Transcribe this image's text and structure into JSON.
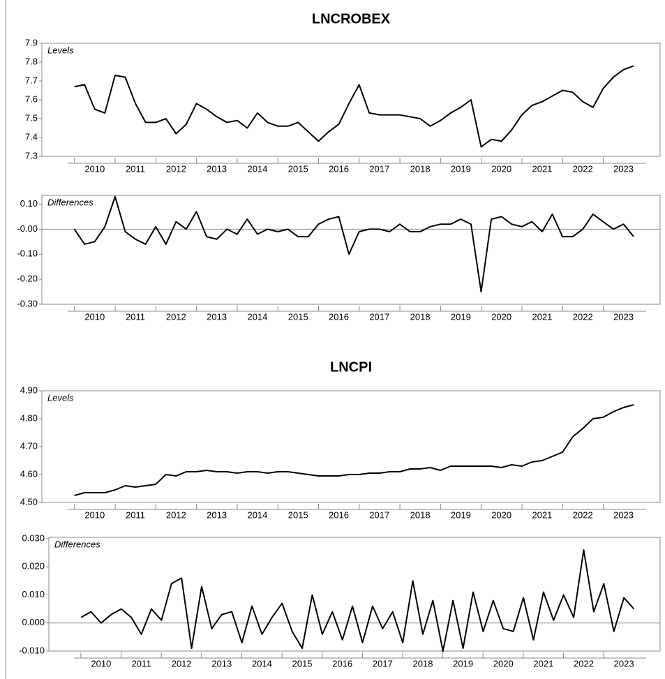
{
  "chart_data": [
    {
      "type": "line",
      "title": "LNCROBEX",
      "panel_label": "Levels",
      "x": [
        2010.0,
        2010.25,
        2010.5,
        2010.75,
        2011.0,
        2011.25,
        2011.5,
        2011.75,
        2012.0,
        2012.25,
        2012.5,
        2012.75,
        2013.0,
        2013.25,
        2013.5,
        2013.75,
        2014.0,
        2014.25,
        2014.5,
        2014.75,
        2015.0,
        2015.25,
        2015.5,
        2015.75,
        2016.0,
        2016.25,
        2016.5,
        2016.75,
        2017.0,
        2017.25,
        2017.5,
        2017.75,
        2018.0,
        2018.25,
        2018.5,
        2018.75,
        2019.0,
        2019.25,
        2019.5,
        2019.75,
        2020.0,
        2020.25,
        2020.5,
        2020.75,
        2021.0,
        2021.25,
        2021.5,
        2021.75,
        2022.0,
        2022.25,
        2022.5,
        2022.75,
        2023.0,
        2023.25,
        2023.5,
        2023.75
      ],
      "series": [
        {
          "color": "#000000",
          "values": [
            7.67,
            7.68,
            7.55,
            7.53,
            7.73,
            7.72,
            7.58,
            7.48,
            7.48,
            7.5,
            7.42,
            7.47,
            7.58,
            7.55,
            7.51,
            7.48,
            7.49,
            7.45,
            7.53,
            7.48,
            7.46,
            7.46,
            7.48,
            7.43,
            7.38,
            7.43,
            7.47,
            7.58,
            7.68,
            7.53,
            7.52,
            7.52,
            7.52,
            7.51,
            7.5,
            7.46,
            7.49,
            7.53,
            7.56,
            7.6,
            7.35,
            7.39,
            7.38,
            7.44,
            7.52,
            7.57,
            7.59,
            7.62,
            7.65,
            7.64,
            7.59,
            7.56,
            7.66,
            7.72,
            7.76,
            7.78
          ]
        }
      ],
      "xlim": [
        2009.2,
        2024.4
      ],
      "xticks": [
        {
          "value": 2010.5,
          "label": "2010"
        },
        {
          "value": 2011.5,
          "label": "2011"
        },
        {
          "value": 2012.5,
          "label": "2012"
        },
        {
          "value": 2013.5,
          "label": "2013"
        },
        {
          "value": 2014.5,
          "label": "2014"
        },
        {
          "value": 2015.5,
          "label": "2015"
        },
        {
          "value": 2016.5,
          "label": "2016"
        },
        {
          "value": 2017.5,
          "label": "2017"
        },
        {
          "value": 2018.5,
          "label": "2018"
        },
        {
          "value": 2019.5,
          "label": "2019"
        },
        {
          "value": 2020.5,
          "label": "2020"
        },
        {
          "value": 2021.5,
          "label": "2021"
        },
        {
          "value": 2022.5,
          "label": "2022"
        },
        {
          "value": 2023.5,
          "label": "2023"
        }
      ],
      "ylim": [
        7.3,
        7.9
      ],
      "yticks": [
        7.3,
        7.4,
        7.5,
        7.6,
        7.7,
        7.8,
        7.9
      ],
      "grid": false
    },
    {
      "type": "line",
      "panel_label": "Differences",
      "x": [
        2010.0,
        2010.25,
        2010.5,
        2010.75,
        2011.0,
        2011.25,
        2011.5,
        2011.75,
        2012.0,
        2012.25,
        2012.5,
        2012.75,
        2013.0,
        2013.25,
        2013.5,
        2013.75,
        2014.0,
        2014.25,
        2014.5,
        2014.75,
        2015.0,
        2015.25,
        2015.5,
        2015.75,
        2016.0,
        2016.25,
        2016.5,
        2016.75,
        2017.0,
        2017.25,
        2017.5,
        2017.75,
        2018.0,
        2018.25,
        2018.5,
        2018.75,
        2019.0,
        2019.25,
        2019.5,
        2019.75,
        2020.0,
        2020.25,
        2020.5,
        2020.75,
        2021.0,
        2021.25,
        2021.5,
        2021.75,
        2022.0,
        2022.25,
        2022.5,
        2022.75,
        2023.0,
        2023.25,
        2023.5,
        2023.75
      ],
      "series": [
        {
          "color": "#000000",
          "values": [
            0.0,
            -0.06,
            -0.05,
            0.01,
            0.13,
            -0.01,
            -0.04,
            -0.06,
            0.01,
            -0.06,
            0.03,
            0.0,
            0.07,
            -0.03,
            -0.04,
            0.0,
            -0.02,
            0.04,
            -0.02,
            0.0,
            -0.01,
            0.0,
            -0.03,
            -0.03,
            0.02,
            0.04,
            0.05,
            -0.1,
            -0.01,
            0.0,
            0.0,
            -0.01,
            0.02,
            -0.01,
            -0.01,
            0.01,
            0.02,
            0.02,
            0.04,
            0.02,
            -0.25,
            0.04,
            0.05,
            0.02,
            0.01,
            0.03,
            -0.01,
            0.06,
            -0.03,
            -0.03,
            0.0,
            0.06,
            0.03,
            0.0,
            0.02,
            -0.03
          ]
        }
      ],
      "xlim": [
        2009.2,
        2024.4
      ],
      "xticks": [
        {
          "value": 2010.5,
          "label": "2010"
        },
        {
          "value": 2011.5,
          "label": "2011"
        },
        {
          "value": 2012.5,
          "label": "2012"
        },
        {
          "value": 2013.5,
          "label": "2013"
        },
        {
          "value": 2014.5,
          "label": "2014"
        },
        {
          "value": 2015.5,
          "label": "2015"
        },
        {
          "value": 2016.5,
          "label": "2016"
        },
        {
          "value": 2017.5,
          "label": "2017"
        },
        {
          "value": 2018.5,
          "label": "2018"
        },
        {
          "value": 2019.5,
          "label": "2019"
        },
        {
          "value": 2020.5,
          "label": "2020"
        },
        {
          "value": 2021.5,
          "label": "2021"
        },
        {
          "value": 2022.5,
          "label": "2022"
        },
        {
          "value": 2023.5,
          "label": "2023"
        }
      ],
      "ylim": [
        -0.3,
        0.135
      ],
      "yticks": [
        {
          "value": 0.1,
          "label": "0.10"
        },
        {
          "value": 0,
          "label": "-0.00"
        },
        {
          "value": -0.1,
          "label": "-0.10"
        },
        {
          "value": -0.2,
          "label": "-0.20"
        },
        {
          "value": -0.3,
          "label": "-0.30"
        }
      ],
      "zero_line": true,
      "grid": false
    },
    {
      "type": "line",
      "title": "LNCPI",
      "panel_label": "Levels",
      "x": [
        2010.0,
        2010.25,
        2010.5,
        2010.75,
        2011.0,
        2011.25,
        2011.5,
        2011.75,
        2012.0,
        2012.25,
        2012.5,
        2012.75,
        2013.0,
        2013.25,
        2013.5,
        2013.75,
        2014.0,
        2014.25,
        2014.5,
        2014.75,
        2015.0,
        2015.25,
        2015.5,
        2015.75,
        2016.0,
        2016.25,
        2016.5,
        2016.75,
        2017.0,
        2017.25,
        2017.5,
        2017.75,
        2018.0,
        2018.25,
        2018.5,
        2018.75,
        2019.0,
        2019.25,
        2019.5,
        2019.75,
        2020.0,
        2020.25,
        2020.5,
        2020.75,
        2021.0,
        2021.25,
        2021.5,
        2021.75,
        2022.0,
        2022.25,
        2022.5,
        2022.75,
        2023.0,
        2023.25,
        2023.5,
        2023.75
      ],
      "series": [
        {
          "color": "#000000",
          "values": [
            4.525,
            4.535,
            4.535,
            4.535,
            4.545,
            4.56,
            4.555,
            4.56,
            4.565,
            4.6,
            4.595,
            4.61,
            4.61,
            4.615,
            4.61,
            4.61,
            4.605,
            4.61,
            4.61,
            4.605,
            4.61,
            4.61,
            4.605,
            4.6,
            4.595,
            4.595,
            4.595,
            4.6,
            4.6,
            4.605,
            4.605,
            4.61,
            4.61,
            4.62,
            4.62,
            4.625,
            4.615,
            4.63,
            4.63,
            4.63,
            4.63,
            4.63,
            4.625,
            4.635,
            4.63,
            4.645,
            4.65,
            4.665,
            4.68,
            4.735,
            4.765,
            4.8,
            4.805,
            4.825,
            4.84,
            4.85
          ]
        }
      ],
      "xlim": [
        2009.2,
        2024.4
      ],
      "xticks": [
        {
          "value": 2010.5,
          "label": "2010"
        },
        {
          "value": 2011.5,
          "label": "2011"
        },
        {
          "value": 2012.5,
          "label": "2012"
        },
        {
          "value": 2013.5,
          "label": "2013"
        },
        {
          "value": 2014.5,
          "label": "2014"
        },
        {
          "value": 2015.5,
          "label": "2015"
        },
        {
          "value": 2016.5,
          "label": "2016"
        },
        {
          "value": 2017.5,
          "label": "2017"
        },
        {
          "value": 2018.5,
          "label": "2018"
        },
        {
          "value": 2019.5,
          "label": "2019"
        },
        {
          "value": 2020.5,
          "label": "2020"
        },
        {
          "value": 2021.5,
          "label": "2021"
        },
        {
          "value": 2022.5,
          "label": "2022"
        },
        {
          "value": 2023.5,
          "label": "2023"
        }
      ],
      "ylim": [
        4.5,
        4.9
      ],
      "yticks": [
        {
          "value": 4.5,
          "label": "4.50"
        },
        {
          "value": 4.6,
          "label": "4.60"
        },
        {
          "value": 4.7,
          "label": "4.70"
        },
        {
          "value": 4.8,
          "label": "4.80"
        },
        {
          "value": 4.9,
          "label": "4.90"
        }
      ],
      "grid": false
    },
    {
      "type": "line",
      "panel_label": "Differences",
      "x": [
        2010.0,
        2010.25,
        2010.5,
        2010.75,
        2011.0,
        2011.25,
        2011.5,
        2011.75,
        2012.0,
        2012.25,
        2012.5,
        2012.75,
        2013.0,
        2013.25,
        2013.5,
        2013.75,
        2014.0,
        2014.25,
        2014.5,
        2014.75,
        2015.0,
        2015.25,
        2015.5,
        2015.75,
        2016.0,
        2016.25,
        2016.5,
        2016.75,
        2017.0,
        2017.25,
        2017.5,
        2017.75,
        2018.0,
        2018.25,
        2018.5,
        2018.75,
        2019.0,
        2019.25,
        2019.5,
        2019.75,
        2020.0,
        2020.25,
        2020.5,
        2020.75,
        2021.0,
        2021.25,
        2021.5,
        2021.75,
        2022.0,
        2022.25,
        2022.5,
        2022.75,
        2023.0,
        2023.25,
        2023.5,
        2023.75
      ],
      "series": [
        {
          "color": "#000000",
          "values": [
            0.002,
            0.004,
            0.0,
            0.003,
            0.005,
            0.002,
            -0.004,
            0.005,
            0.001,
            0.014,
            0.016,
            -0.009,
            0.013,
            -0.002,
            0.003,
            0.004,
            -0.007,
            0.006,
            -0.004,
            0.002,
            0.007,
            -0.003,
            -0.009,
            0.01,
            -0.004,
            0.004,
            -0.006,
            0.006,
            -0.007,
            0.006,
            -0.002,
            0.004,
            -0.007,
            0.015,
            -0.004,
            0.008,
            -0.01,
            0.008,
            -0.009,
            0.011,
            -0.003,
            0.008,
            -0.002,
            -0.003,
            0.009,
            -0.006,
            0.011,
            0.001,
            0.01,
            0.002,
            0.026,
            0.004,
            0.014,
            -0.003,
            0.009,
            0.005
          ]
        }
      ],
      "xlim": [
        2009.2,
        2024.4
      ],
      "xticks": [
        {
          "value": 2010.5,
          "label": "2010"
        },
        {
          "value": 2011.5,
          "label": "2011"
        },
        {
          "value": 2012.5,
          "label": "2012"
        },
        {
          "value": 2013.5,
          "label": "2013"
        },
        {
          "value": 2014.5,
          "label": "2014"
        },
        {
          "value": 2015.5,
          "label": "2015"
        },
        {
          "value": 2016.5,
          "label": "2016"
        },
        {
          "value": 2017.5,
          "label": "2017"
        },
        {
          "value": 2018.5,
          "label": "2018"
        },
        {
          "value": 2019.5,
          "label": "2019"
        },
        {
          "value": 2020.5,
          "label": "2020"
        },
        {
          "value": 2021.5,
          "label": "2021"
        },
        {
          "value": 2022.5,
          "label": "2022"
        },
        {
          "value": 2023.5,
          "label": "2023"
        }
      ],
      "ylim": [
        -0.01,
        0.0305
      ],
      "yticks": [
        {
          "value": 0.03,
          "label": "0.030"
        },
        {
          "value": 0.02,
          "label": "0.020"
        },
        {
          "value": 0.01,
          "label": "0.010"
        },
        {
          "value": 0,
          "label": "0.000"
        },
        {
          "value": -0.01,
          "label": "-0.010"
        }
      ],
      "zero_line": true,
      "grid": false
    }
  ]
}
